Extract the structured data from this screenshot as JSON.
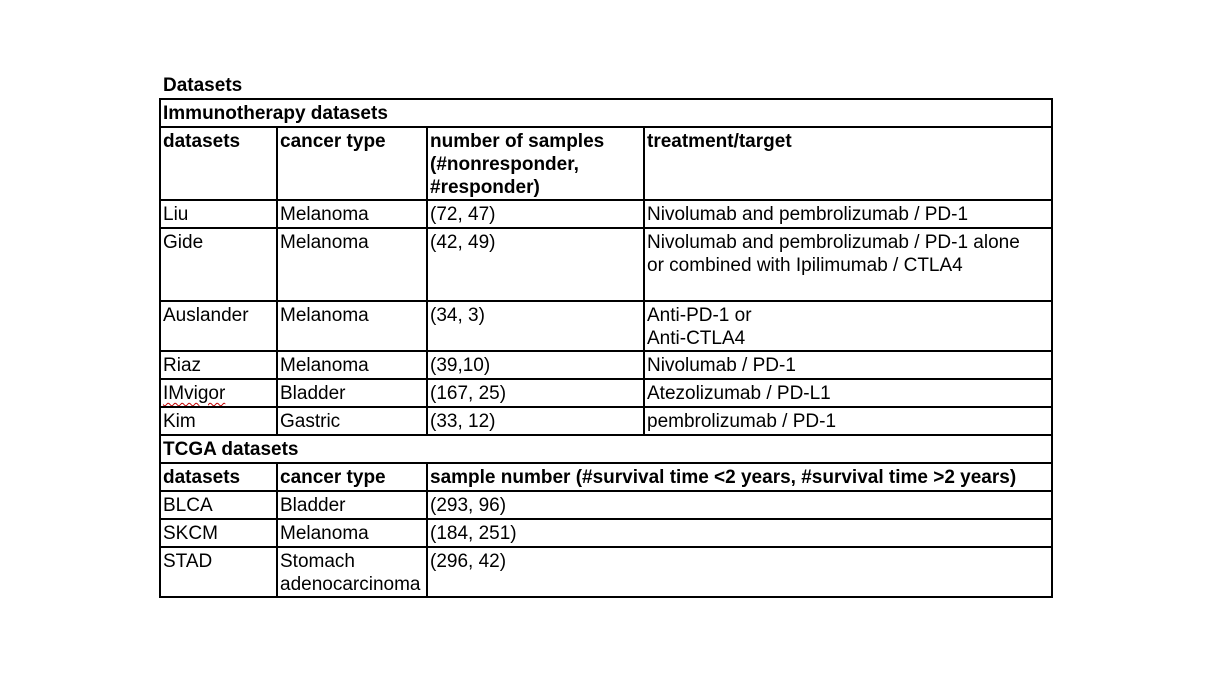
{
  "title": "Datasets",
  "immunotherapy": {
    "section_title": "Immunotherapy datasets",
    "headers": {
      "datasets": "datasets",
      "cancer_type": "cancer type",
      "samples_l1": "number of samples",
      "samples_l2": "(#nonresponder,",
      "samples_l3": "#responder)",
      "treatment": "treatment/target"
    },
    "rows": [
      {
        "dataset": "Liu",
        "cancer_type": "Melanoma",
        "samples": "(72, 47)",
        "treatment_l1": "Nivolumab and pembrolizumab / PD-1",
        "treatment_l2": ""
      },
      {
        "dataset": "Gide",
        "cancer_type": "Melanoma",
        "samples": "(42, 49)",
        "treatment_l1": "Nivolumab and pembrolizumab / PD-1 alone",
        "treatment_l2": "or combined with Ipilimumab / CTLA4"
      },
      {
        "dataset": "Auslander",
        "cancer_type": "Melanoma",
        "samples": "(34, 3)",
        "treatment_l1": "Anti-PD-1 or",
        "treatment_l2": "Anti-CTLA4"
      },
      {
        "dataset": "Riaz",
        "cancer_type": "Melanoma",
        "samples": "(39,10)",
        "treatment_l1": "Nivolumab / PD-1",
        "treatment_l2": ""
      },
      {
        "dataset": "IMvigor",
        "cancer_type": "Bladder",
        "samples": "(167, 25)",
        "treatment_l1": "Atezolizumab / PD-L1",
        "treatment_l2": ""
      },
      {
        "dataset": "Kim",
        "cancer_type": "Gastric",
        "samples": "(33, 12)",
        "treatment_l1": "pembrolizumab / PD-1",
        "treatment_l2": ""
      }
    ]
  },
  "tcga": {
    "section_title": "TCGA datasets",
    "headers": {
      "datasets": "datasets",
      "cancer_type": "cancer type",
      "sample_number": "sample number (#survival time <2 years, #survival time >2 years)"
    },
    "rows": [
      {
        "dataset": "BLCA",
        "cancer_type_l1": "Bladder",
        "cancer_type_l2": "",
        "samples": "(293, 96)"
      },
      {
        "dataset": "SKCM",
        "cancer_type_l1": "Melanoma",
        "cancer_type_l2": "",
        "samples": "(184, 251)"
      },
      {
        "dataset": "STAD",
        "cancer_type_l1": "Stomach",
        "cancer_type_l2": "adenocarcinoma",
        "samples": "(296, 42)"
      }
    ]
  }
}
